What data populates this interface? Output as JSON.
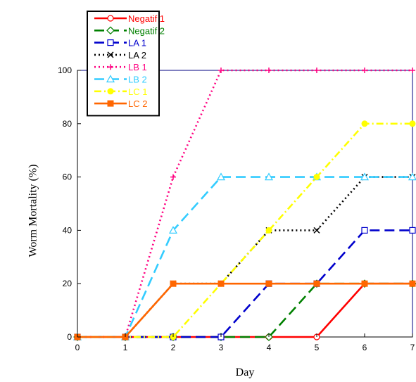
{
  "chart_data": {
    "type": "line",
    "xlabel": "Day",
    "ylabel": "Worm Mortality (%)",
    "xlim": [
      0,
      7
    ],
    "ylim": [
      0,
      100
    ],
    "x_ticks": [
      "0",
      "1",
      "2",
      "3",
      "4",
      "5",
      "6",
      "7"
    ],
    "y_ticks": [
      "0",
      "20",
      "40",
      "60",
      "80",
      "100"
    ],
    "grid": false,
    "legend_position": "top-left",
    "x": [
      0,
      1,
      2,
      3,
      4,
      5,
      6,
      7
    ],
    "series": [
      {
        "name": "Negatif 1",
        "color": "#ff0000",
        "dash": "solid",
        "marker": "circle-open",
        "values": [
          0,
          0,
          0,
          0,
          0,
          0,
          20,
          20
        ]
      },
      {
        "name": "Negatif 2",
        "color": "#008000",
        "dash": "longdash",
        "marker": "diamond-open",
        "values": [
          0,
          0,
          0,
          0,
          0,
          20,
          20,
          20
        ]
      },
      {
        "name": "LA 1",
        "color": "#0000cc",
        "dash": "longdash",
        "marker": "square-open",
        "values": [
          0,
          0,
          0,
          0,
          20,
          20,
          40,
          40
        ]
      },
      {
        "name": "LA 2",
        "color": "#000000",
        "dash": "dot",
        "marker": "x",
        "values": [
          0,
          0,
          20,
          20,
          40,
          40,
          60,
          60
        ]
      },
      {
        "name": "LB 1",
        "color": "#ff0080",
        "dash": "dot",
        "marker": "plus",
        "values": [
          0,
          0,
          60,
          100,
          100,
          100,
          100,
          100
        ]
      },
      {
        "name": "LB 2",
        "color": "#33ccff",
        "dash": "longdash",
        "marker": "triangle-open",
        "values": [
          0,
          0,
          40,
          60,
          60,
          60,
          60,
          60
        ]
      },
      {
        "name": "LC 1",
        "color": "#ffff00",
        "dash": "dashdot",
        "marker": "circle-filled",
        "values": [
          0,
          0,
          0,
          20,
          40,
          60,
          80,
          80
        ]
      },
      {
        "name": "LC 2",
        "color": "#ff6600",
        "dash": "solid",
        "marker": "square-filled",
        "values": [
          0,
          0,
          20,
          20,
          20,
          20,
          20,
          20
        ]
      }
    ]
  }
}
